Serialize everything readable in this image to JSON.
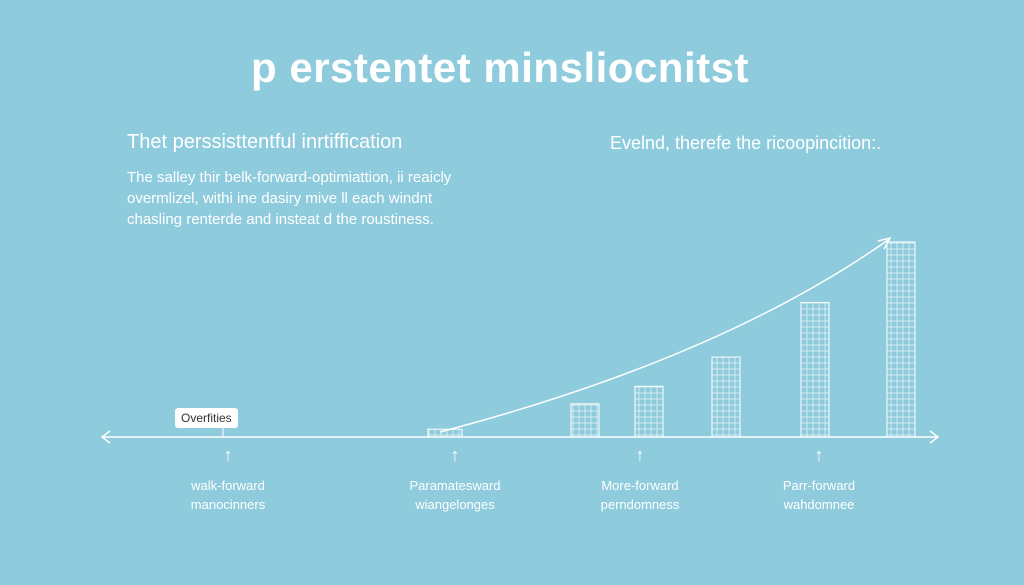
{
  "title": "p erstentet minsliocnitst",
  "left_panel": {
    "heading": "Thet perssisttentful inrtiffication",
    "lines": [
      "The salley thir belk-forward-optimiattion, ii reaicly",
      "overmlizel, withi ine dasiry mive ll each windnt",
      "chasling renterde and insteat d the roustiness."
    ]
  },
  "right_panel": {
    "heading": "Evelnd, therefe the ricoopincition:."
  },
  "callout": "Overfities",
  "markers": [
    {
      "line1": "walk-forward",
      "line2": "manocinners"
    },
    {
      "line1": "Paramatesward",
      "line2": "wiangelonges"
    },
    {
      "line1": "More-forward",
      "line2": "perndomness"
    },
    {
      "line1": "Parr-forward",
      "line2": "wahdomnee"
    }
  ],
  "chart_data": {
    "type": "bar",
    "relative_heights": [
      4,
      17,
      26,
      41,
      69,
      100
    ],
    "trend": "exponential-rise-arrow"
  },
  "colors": {
    "background": "#8ecbdc",
    "foreground": "#ffffff"
  }
}
